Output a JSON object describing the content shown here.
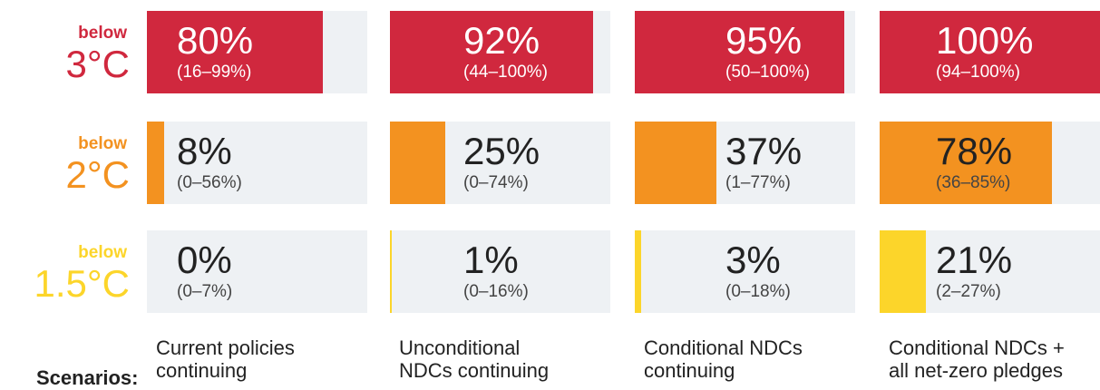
{
  "chart_data": {
    "type": "bar",
    "xlim": [
      0,
      100
    ],
    "categories_label": "Scenarios:",
    "categories": [
      [
        "Current policies",
        "continuing"
      ],
      [
        "Unconditional",
        "NDCs continuing"
      ],
      [
        "Conditional NDCs",
        "continuing"
      ],
      [
        "Conditional NDCs +",
        "all net-zero pledges"
      ]
    ],
    "background_color": "#eef1f4",
    "series": [
      {
        "prefix": "below",
        "name": "3°C",
        "color": "#d0283e",
        "values": [
          80,
          92,
          95,
          100
        ],
        "value_labels": [
          "80%",
          "92%",
          "95%",
          "100%"
        ],
        "range_labels": [
          "(16–99%)",
          "(44–100%)",
          "(50–100%)",
          "(94–100%)"
        ]
      },
      {
        "prefix": "below",
        "name": "2°C",
        "color": "#f39220",
        "values": [
          8,
          25,
          37,
          78
        ],
        "value_labels": [
          "8%",
          "25%",
          "37%",
          "78%"
        ],
        "range_labels": [
          "(0–56%)",
          "(0–74%)",
          "(1–77%)",
          "(36–85%)"
        ]
      },
      {
        "prefix": "below",
        "name": "1.5°C",
        "color": "#fcd52a",
        "values": [
          0,
          1,
          3,
          21
        ],
        "value_labels": [
          "0%",
          "1%",
          "3%",
          "21%"
        ],
        "range_labels": [
          "(0–7%)",
          "(0–16%)",
          "(0–18%)",
          "(2–27%)"
        ]
      }
    ]
  }
}
